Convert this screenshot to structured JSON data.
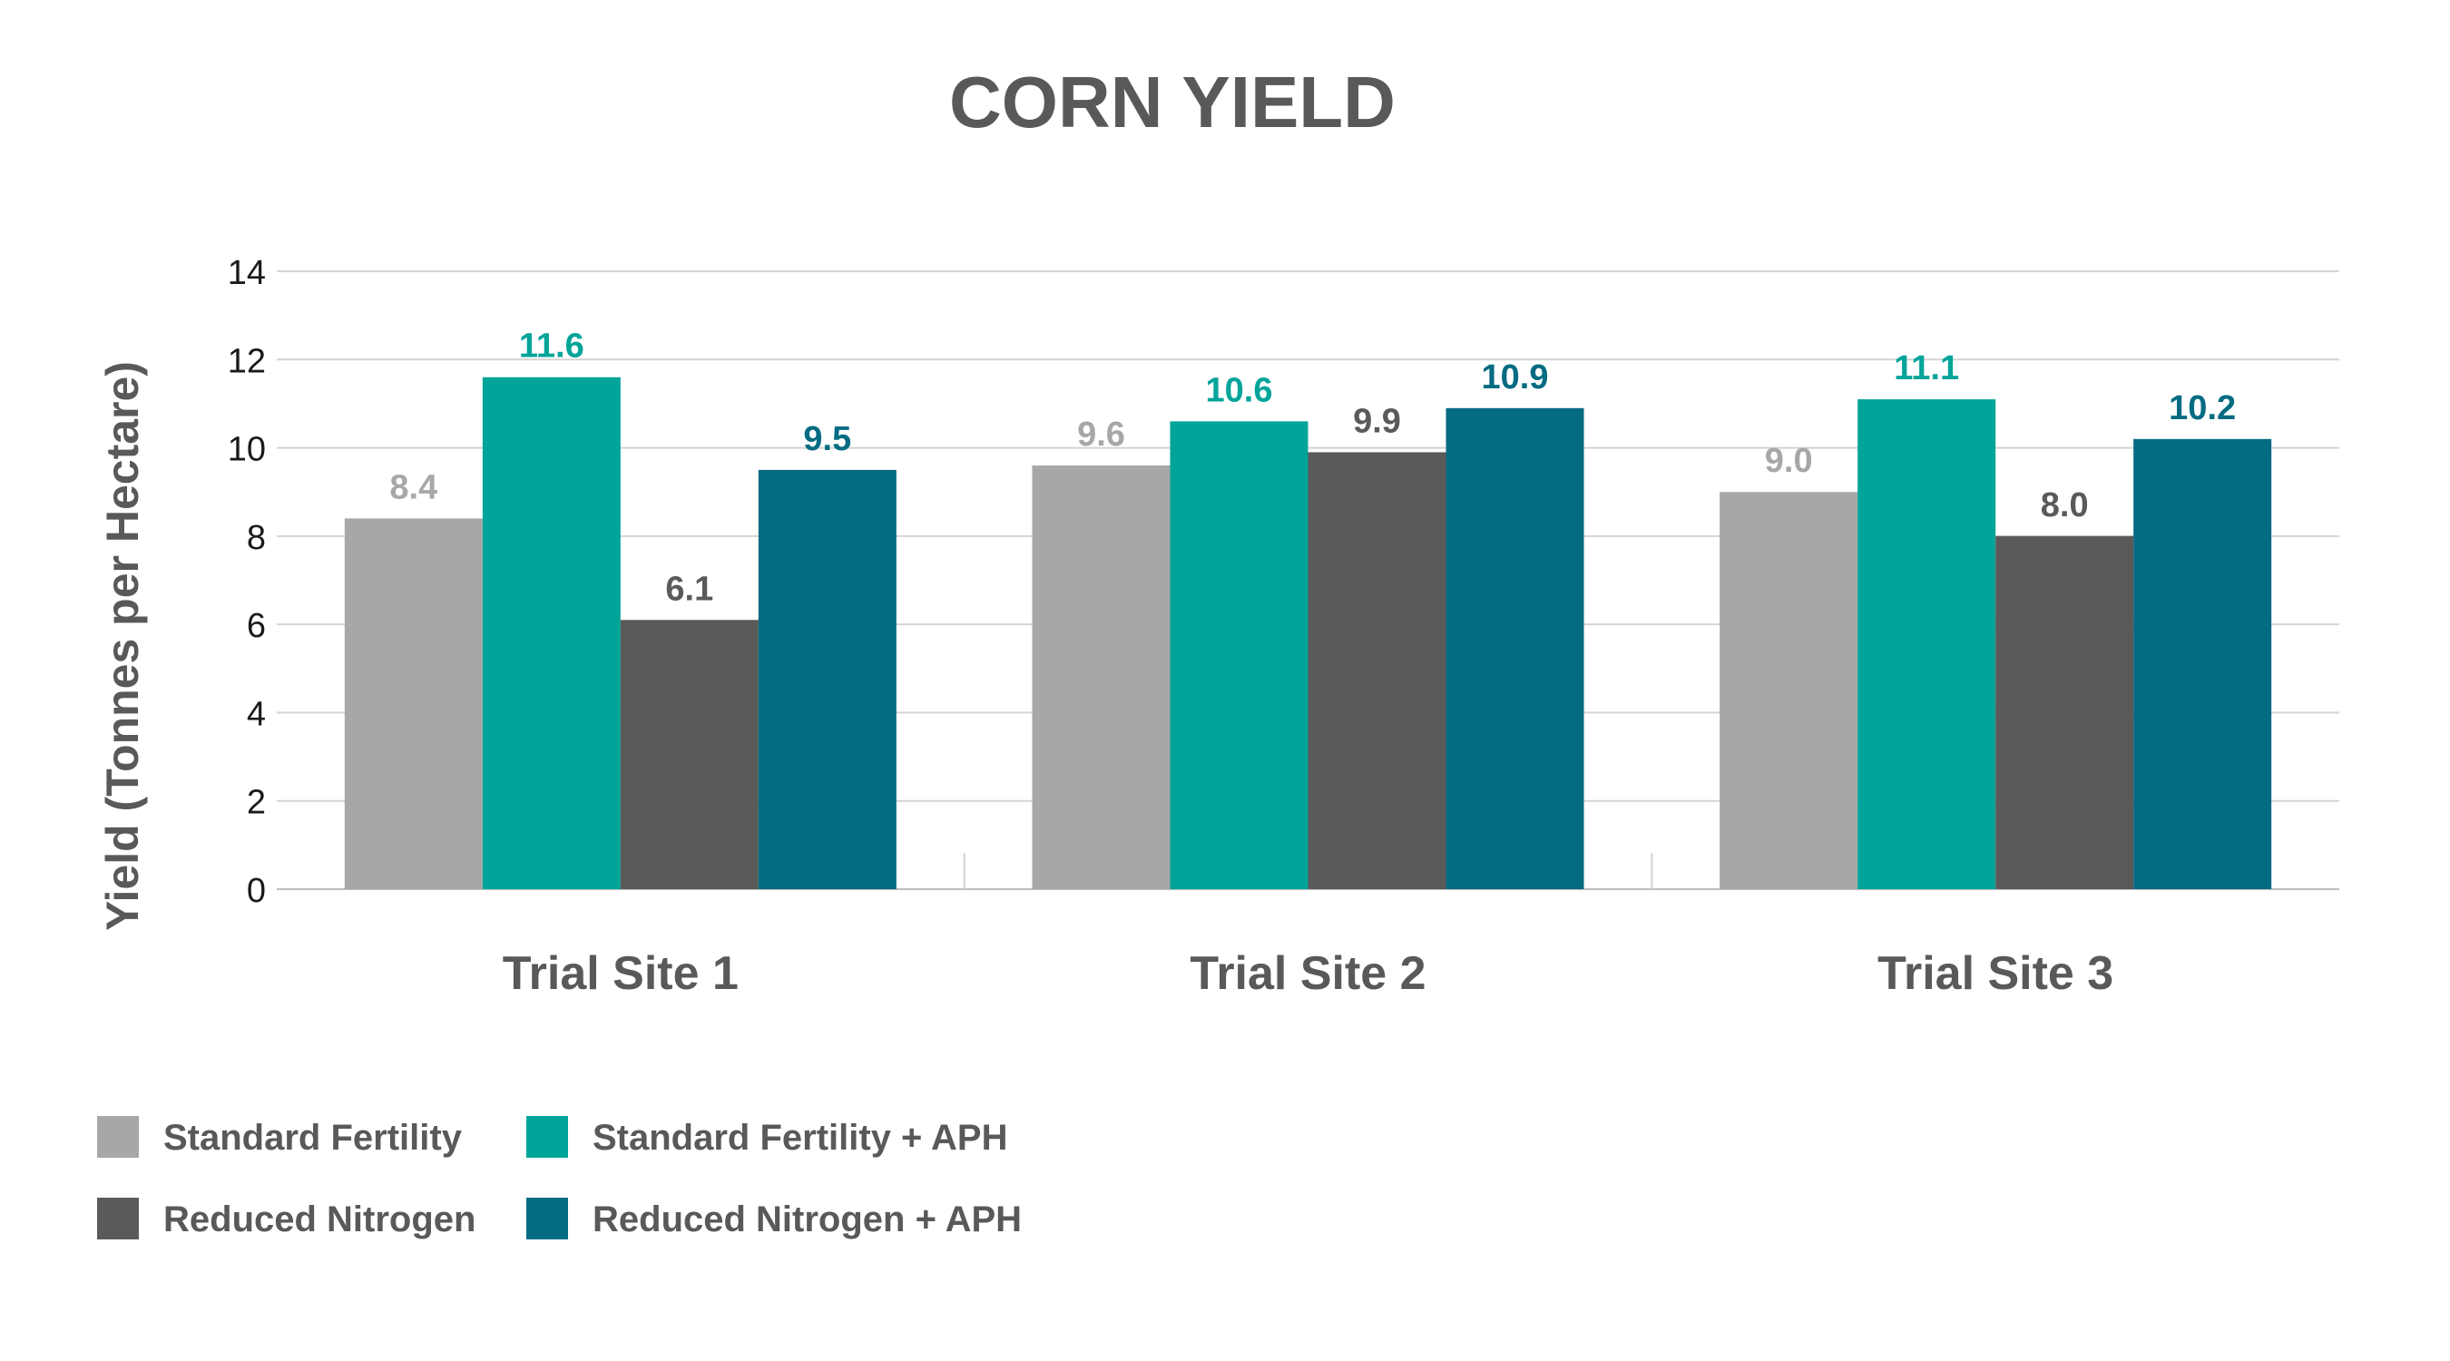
{
  "chart_data": {
    "type": "bar",
    "title": "CORN YIELD",
    "ylabel": "Yield (Tonnes per Hectare)",
    "xlabel": "",
    "ylim": [
      0,
      14
    ],
    "yticks": [
      0,
      2,
      4,
      6,
      8,
      10,
      12,
      14
    ],
    "grid": true,
    "legend_position": "bottom-left",
    "categories": [
      "Trial Site 1",
      "Trial Site 2",
      "Trial Site 3"
    ],
    "series": [
      {
        "name": "Standard Fertility",
        "color": "#a6a8a7",
        "values": [
          8.4,
          9.6,
          9.0
        ],
        "labels": [
          "8.4",
          "9.6",
          "9.0"
        ]
      },
      {
        "name": "Standard Fertility + APH",
        "color": "#00a499",
        "values": [
          11.6,
          10.6,
          11.1
        ],
        "labels": [
          "11.6",
          "10.6",
          "11.1"
        ]
      },
      {
        "name": "Reduced Nitrogen",
        "color": "#5a5a5a",
        "values": [
          6.1,
          9.9,
          8.0
        ],
        "labels": [
          "6.1",
          "9.9",
          "8.0"
        ]
      },
      {
        "name": "Reduced Nitrogen + APH",
        "color": "#056b82",
        "values": [
          9.5,
          10.9,
          10.2
        ],
        "labels": [
          "9.5",
          "10.9",
          "10.2"
        ]
      }
    ]
  }
}
